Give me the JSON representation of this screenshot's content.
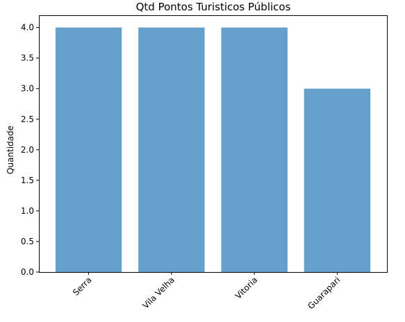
{
  "chart_data": {
    "type": "bar",
    "title": "Qtd Pontos Turisticos Públicos",
    "xlabel": "",
    "ylabel": "Quantidade",
    "categories": [
      "Serra",
      "Vila Velha",
      "Vitoria",
      "Guarapari"
    ],
    "values": [
      4,
      4,
      4,
      3
    ],
    "ylim": [
      0,
      4.2
    ],
    "yticks": [
      "0.0",
      "0.5",
      "1.0",
      "1.5",
      "2.0",
      "2.5",
      "3.0",
      "3.5",
      "4.0"
    ],
    "grid": false,
    "legend": "none",
    "bar_color": "#63a0cb",
    "xtick_rotation": 45
  }
}
